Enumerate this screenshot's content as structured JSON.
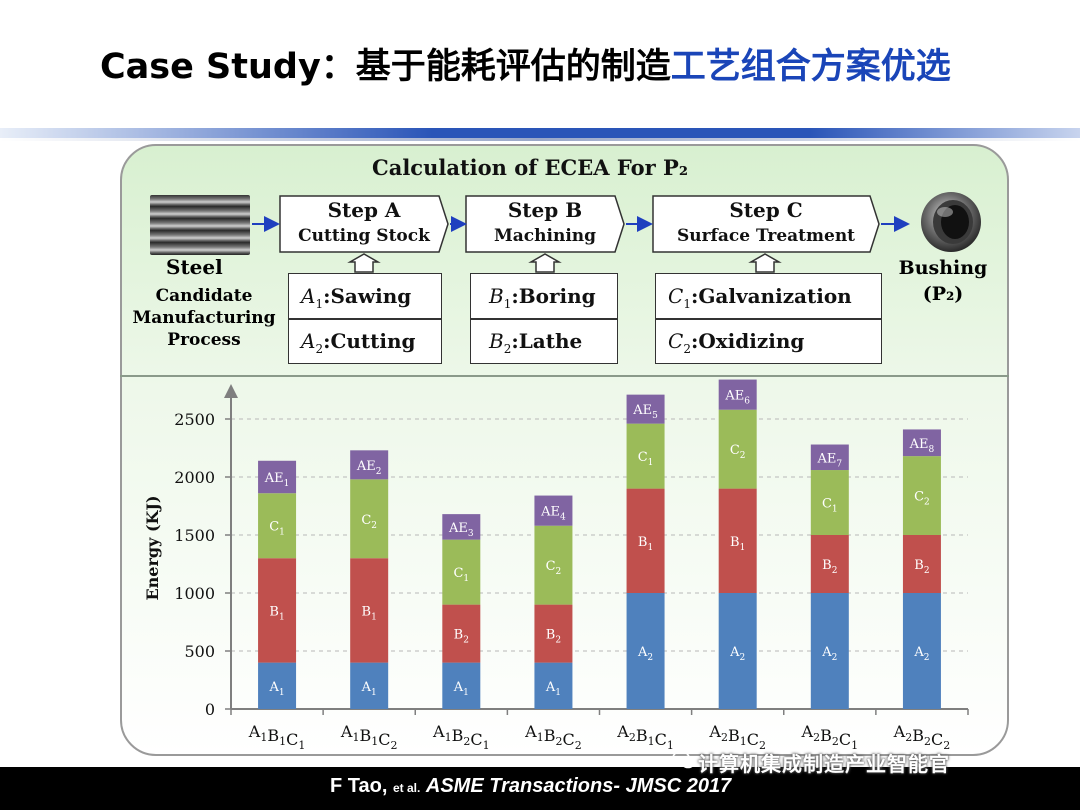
{
  "slide": {
    "title_part1": "Case Study：基于能耗评估的制造",
    "title_part2": "工艺组合方案优选"
  },
  "diagram": {
    "calc_title": "Calculation of ECEA For P₂",
    "steps": [
      {
        "name": "Step A",
        "desc": "Cutting Stock"
      },
      {
        "name": "Step B",
        "desc": "Machining"
      },
      {
        "name": "Step C",
        "desc": "Surface Treatment"
      }
    ],
    "options": {
      "A": [
        {
          "sym": "A",
          "sub": "1",
          "label": ":Sawing"
        },
        {
          "sym": "A",
          "sub": "2",
          "label": ":Cutting"
        }
      ],
      "B": [
        {
          "sym": "B",
          "sub": "1",
          "label": ":Boring"
        },
        {
          "sym": "B",
          "sub": "2",
          "label": ":Lathe"
        }
      ],
      "C": [
        {
          "sym": "C",
          "sub": "1",
          "label": ":Galvanization"
        },
        {
          "sym": "C",
          "sub": "2",
          "label": ":Oxidizing"
        }
      ]
    },
    "input_label": "Steel",
    "candidate_label": "Candidate Manufacturing Process",
    "output_label": "Bushing",
    "output_sub": "(P₂)"
  },
  "chart_data": {
    "type": "bar",
    "stacked": true,
    "ylabel": "Energy (KJ)",
    "ylim": [
      0,
      2500
    ],
    "yticks": [
      0,
      500,
      1000,
      1500,
      2000,
      2500
    ],
    "categories": [
      [
        [
          "A",
          "1"
        ],
        [
          "B",
          "1"
        ],
        [
          "C",
          "1"
        ]
      ],
      [
        [
          "A",
          "1"
        ],
        [
          "B",
          "1"
        ],
        [
          "C",
          "2"
        ]
      ],
      [
        [
          "A",
          "1"
        ],
        [
          "B",
          "2"
        ],
        [
          "C",
          "1"
        ]
      ],
      [
        [
          "A",
          "1"
        ],
        [
          "B",
          "2"
        ],
        [
          "C",
          "2"
        ]
      ],
      [
        [
          "A",
          "2"
        ],
        [
          "B",
          "1"
        ],
        [
          "C",
          "1"
        ]
      ],
      [
        [
          "A",
          "2"
        ],
        [
          "B",
          "1"
        ],
        [
          "C",
          "2"
        ]
      ],
      [
        [
          "A",
          "2"
        ],
        [
          "B",
          "2"
        ],
        [
          "C",
          "1"
        ]
      ],
      [
        [
          "A",
          "2"
        ],
        [
          "B",
          "2"
        ],
        [
          "C",
          "2"
        ]
      ]
    ],
    "bars": [
      {
        "segments": [
          {
            "label": [
              "A",
              "1"
            ],
            "value": 400,
            "color": "#4f81bd"
          },
          {
            "label": [
              "B",
              "1"
            ],
            "value": 900,
            "color": "#c0504d"
          },
          {
            "label": [
              "C",
              "1"
            ],
            "value": 560,
            "color": "#9bbb59"
          },
          {
            "label": [
              "AE",
              "1"
            ],
            "value": 280,
            "color": "#8064a2"
          }
        ]
      },
      {
        "segments": [
          {
            "label": [
              "A",
              "1"
            ],
            "value": 400,
            "color": "#4f81bd"
          },
          {
            "label": [
              "B",
              "1"
            ],
            "value": 900,
            "color": "#c0504d"
          },
          {
            "label": [
              "C",
              "2"
            ],
            "value": 680,
            "color": "#9bbb59"
          },
          {
            "label": [
              "AE",
              "2"
            ],
            "value": 250,
            "color": "#8064a2"
          }
        ]
      },
      {
        "segments": [
          {
            "label": [
              "A",
              "1"
            ],
            "value": 400,
            "color": "#4f81bd"
          },
          {
            "label": [
              "B",
              "2"
            ],
            "value": 500,
            "color": "#c0504d"
          },
          {
            "label": [
              "C",
              "1"
            ],
            "value": 560,
            "color": "#9bbb59"
          },
          {
            "label": [
              "AE",
              "3"
            ],
            "value": 220,
            "color": "#8064a2"
          }
        ]
      },
      {
        "segments": [
          {
            "label": [
              "A",
              "1"
            ],
            "value": 400,
            "color": "#4f81bd"
          },
          {
            "label": [
              "B",
              "2"
            ],
            "value": 500,
            "color": "#c0504d"
          },
          {
            "label": [
              "C",
              "2"
            ],
            "value": 680,
            "color": "#9bbb59"
          },
          {
            "label": [
              "AE",
              "4"
            ],
            "value": 260,
            "color": "#8064a2"
          }
        ]
      },
      {
        "segments": [
          {
            "label": [
              "A",
              "2"
            ],
            "value": 1000,
            "color": "#4f81bd"
          },
          {
            "label": [
              "B",
              "1"
            ],
            "value": 900,
            "color": "#c0504d"
          },
          {
            "label": [
              "C",
              "1"
            ],
            "value": 560,
            "color": "#9bbb59"
          },
          {
            "label": [
              "AE",
              "5"
            ],
            "value": 250,
            "color": "#8064a2"
          }
        ]
      },
      {
        "segments": [
          {
            "label": [
              "A",
              "2"
            ],
            "value": 1000,
            "color": "#4f81bd"
          },
          {
            "label": [
              "B",
              "1"
            ],
            "value": 900,
            "color": "#c0504d"
          },
          {
            "label": [
              "C",
              "2"
            ],
            "value": 680,
            "color": "#9bbb59"
          },
          {
            "label": [
              "AE",
              "6"
            ],
            "value": 260,
            "color": "#8064a2"
          }
        ]
      },
      {
        "segments": [
          {
            "label": [
              "A",
              "2"
            ],
            "value": 1000,
            "color": "#4f81bd"
          },
          {
            "label": [
              "B",
              "2"
            ],
            "value": 500,
            "color": "#c0504d"
          },
          {
            "label": [
              "C",
              "1"
            ],
            "value": 560,
            "color": "#9bbb59"
          },
          {
            "label": [
              "AE",
              "7"
            ],
            "value": 220,
            "color": "#8064a2"
          }
        ]
      },
      {
        "segments": [
          {
            "label": [
              "A",
              "2"
            ],
            "value": 1000,
            "color": "#4f81bd"
          },
          {
            "label": [
              "B",
              "2"
            ],
            "value": 500,
            "color": "#c0504d"
          },
          {
            "label": [
              "C",
              "2"
            ],
            "value": 680,
            "color": "#9bbb59"
          },
          {
            "label": [
              "AE",
              "8"
            ],
            "value": 230,
            "color": "#8064a2"
          }
        ]
      }
    ]
  },
  "footer": {
    "citation_author": "F Tao,",
    "citation_etal": "et al.",
    "citation_journal": "ASME Transactions- JMSC 2017",
    "watermark": "计算机集成制造产业智能官"
  }
}
